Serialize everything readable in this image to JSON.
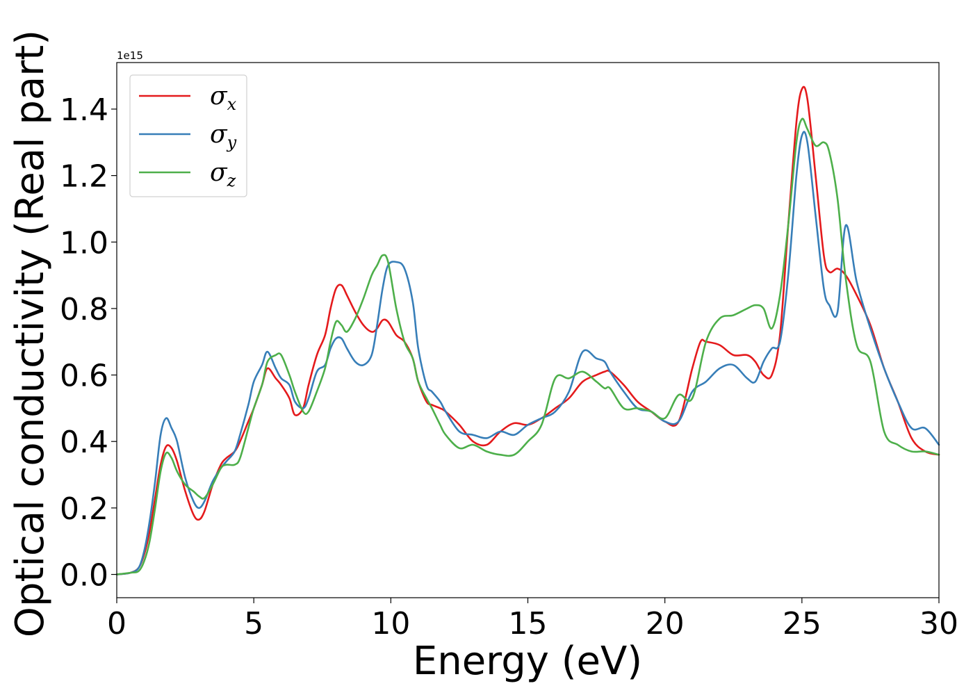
{
  "chart_data": {
    "type": "line",
    "title": "",
    "xlabel": "Energy (eV)",
    "ylabel": "Optical conductivity (Real part)",
    "y_offset_label": "1e15",
    "xlim": [
      0,
      30
    ],
    "ylim": [
      -0.07,
      1.54
    ],
    "xticks": [
      0,
      5,
      10,
      15,
      20,
      25,
      30
    ],
    "xtick_labels": [
      "0",
      "5",
      "10",
      "15",
      "20",
      "25",
      "30"
    ],
    "yticks": [
      0.0,
      0.2,
      0.4,
      0.6,
      0.8,
      1.0,
      1.2,
      1.4
    ],
    "ytick_labels": [
      "0.0",
      "0.2",
      "0.4",
      "0.6",
      "0.8",
      "1.0",
      "1.2",
      "1.4"
    ],
    "grid": false,
    "legend_position": "upper-left",
    "series": [
      {
        "name": "σx",
        "symbol": "σ",
        "subscript": "x",
        "color": "#e41a1c",
        "x": [
          0,
          0.5,
          0.8,
          1.0,
          1.2,
          1.4,
          1.6,
          1.8,
          2.0,
          2.2,
          2.5,
          2.8,
          3.0,
          3.2,
          3.5,
          3.8,
          4.0,
          4.3,
          4.5,
          4.8,
          5.0,
          5.3,
          5.5,
          5.8,
          6.0,
          6.3,
          6.5,
          6.8,
          7.0,
          7.3,
          7.6,
          7.8,
          8.0,
          8.2,
          8.4,
          8.7,
          9.0,
          9.3,
          9.5,
          9.7,
          9.9,
          10.2,
          10.5,
          10.8,
          11.0,
          11.3,
          11.5,
          11.8,
          12.0,
          12.5,
          13.0,
          13.5,
          14.0,
          14.5,
          15.0,
          15.5,
          16.0,
          16.5,
          17.0,
          17.5,
          17.8,
          18.0,
          18.5,
          19.0,
          19.5,
          20.0,
          20.5,
          21.0,
          21.3,
          21.5,
          22.0,
          22.5,
          23.0,
          23.3,
          23.6,
          23.9,
          24.2,
          24.5,
          24.8,
          25.0,
          25.2,
          25.5,
          25.8,
          26.0,
          26.3,
          26.6,
          27.0,
          27.5,
          28.0,
          28.5,
          29.0,
          29.5,
          30.0
        ],
        "y": [
          0.0,
          0.005,
          0.02,
          0.06,
          0.13,
          0.23,
          0.33,
          0.385,
          0.38,
          0.34,
          0.25,
          0.18,
          0.165,
          0.19,
          0.27,
          0.33,
          0.35,
          0.37,
          0.4,
          0.46,
          0.5,
          0.57,
          0.62,
          0.59,
          0.57,
          0.53,
          0.48,
          0.5,
          0.57,
          0.66,
          0.72,
          0.8,
          0.86,
          0.87,
          0.84,
          0.79,
          0.75,
          0.73,
          0.74,
          0.765,
          0.76,
          0.72,
          0.7,
          0.65,
          0.58,
          0.52,
          0.51,
          0.5,
          0.49,
          0.45,
          0.4,
          0.39,
          0.43,
          0.455,
          0.45,
          0.47,
          0.5,
          0.53,
          0.58,
          0.6,
          0.61,
          0.61,
          0.57,
          0.52,
          0.49,
          0.46,
          0.46,
          0.62,
          0.7,
          0.7,
          0.69,
          0.66,
          0.66,
          0.64,
          0.6,
          0.6,
          0.72,
          1.05,
          1.36,
          1.46,
          1.43,
          1.2,
          0.96,
          0.91,
          0.92,
          0.9,
          0.84,
          0.75,
          0.62,
          0.52,
          0.41,
          0.37,
          0.36
        ]
      },
      {
        "name": "σy",
        "symbol": "σ",
        "subscript": "y",
        "color": "#377eb8",
        "x": [
          0,
          0.5,
          0.8,
          1.0,
          1.2,
          1.4,
          1.6,
          1.8,
          2.0,
          2.2,
          2.5,
          2.8,
          3.0,
          3.2,
          3.5,
          3.8,
          4.0,
          4.3,
          4.5,
          4.8,
          5.0,
          5.3,
          5.5,
          5.8,
          6.0,
          6.3,
          6.5,
          6.8,
          7.0,
          7.3,
          7.6,
          7.8,
          8.0,
          8.2,
          8.4,
          8.7,
          9.0,
          9.3,
          9.5,
          9.7,
          9.9,
          10.2,
          10.5,
          10.8,
          11.0,
          11.3,
          11.5,
          11.8,
          12.0,
          12.5,
          13.0,
          13.5,
          14.0,
          14.5,
          15.0,
          15.5,
          16.0,
          16.5,
          17.0,
          17.5,
          17.8,
          18.0,
          18.5,
          19.0,
          19.5,
          20.0,
          20.5,
          21.0,
          21.5,
          22.0,
          22.5,
          23.0,
          23.3,
          23.6,
          23.9,
          24.2,
          24.5,
          24.8,
          25.0,
          25.2,
          25.5,
          25.8,
          26.0,
          26.3,
          26.6,
          27.0,
          27.5,
          28.0,
          28.5,
          29.0,
          29.5,
          30.0
        ],
        "y": [
          0.0,
          0.005,
          0.02,
          0.07,
          0.16,
          0.28,
          0.42,
          0.47,
          0.44,
          0.4,
          0.29,
          0.22,
          0.2,
          0.22,
          0.28,
          0.32,
          0.34,
          0.37,
          0.42,
          0.51,
          0.58,
          0.63,
          0.67,
          0.62,
          0.59,
          0.57,
          0.52,
          0.5,
          0.53,
          0.61,
          0.63,
          0.68,
          0.71,
          0.71,
          0.68,
          0.64,
          0.63,
          0.66,
          0.75,
          0.86,
          0.93,
          0.94,
          0.92,
          0.82,
          0.68,
          0.57,
          0.55,
          0.52,
          0.49,
          0.43,
          0.42,
          0.41,
          0.43,
          0.42,
          0.45,
          0.47,
          0.49,
          0.55,
          0.67,
          0.65,
          0.64,
          0.61,
          0.55,
          0.5,
          0.49,
          0.46,
          0.46,
          0.55,
          0.58,
          0.62,
          0.63,
          0.59,
          0.58,
          0.64,
          0.68,
          0.7,
          0.9,
          1.2,
          1.32,
          1.3,
          1.08,
          0.86,
          0.81,
          0.79,
          1.05,
          0.88,
          0.74,
          0.62,
          0.52,
          0.44,
          0.44,
          0.39
        ]
      },
      {
        "name": "σz",
        "symbol": "σ",
        "subscript": "z",
        "color": "#4daf4a",
        "x": [
          0,
          0.5,
          0.8,
          1.0,
          1.2,
          1.4,
          1.6,
          1.8,
          2.0,
          2.2,
          2.5,
          2.8,
          3.0,
          3.2,
          3.5,
          3.8,
          4.0,
          4.3,
          4.5,
          4.8,
          5.0,
          5.3,
          5.5,
          5.8,
          6.0,
          6.3,
          6.5,
          6.8,
          7.0,
          7.3,
          7.6,
          7.8,
          8.0,
          8.2,
          8.4,
          8.7,
          9.0,
          9.3,
          9.5,
          9.7,
          9.9,
          10.2,
          10.5,
          10.8,
          11.0,
          11.3,
          11.5,
          11.8,
          12.0,
          12.5,
          13.0,
          13.5,
          14.0,
          14.5,
          15.0,
          15.5,
          16.0,
          16.5,
          17.0,
          17.5,
          17.8,
          18.0,
          18.5,
          19.0,
          19.5,
          20.0,
          20.5,
          21.0,
          21.5,
          22.0,
          22.5,
          23.0,
          23.3,
          23.6,
          23.9,
          24.2,
          24.5,
          24.8,
          25.0,
          25.2,
          25.5,
          25.8,
          26.0,
          26.3,
          26.6,
          27.0,
          27.5,
          28.0,
          28.5,
          29.0,
          29.5,
          30.0
        ],
        "y": [
          0.0,
          0.005,
          0.01,
          0.04,
          0.1,
          0.2,
          0.31,
          0.365,
          0.35,
          0.31,
          0.27,
          0.25,
          0.235,
          0.23,
          0.27,
          0.32,
          0.33,
          0.33,
          0.35,
          0.44,
          0.5,
          0.57,
          0.64,
          0.66,
          0.66,
          0.6,
          0.55,
          0.49,
          0.49,
          0.55,
          0.62,
          0.7,
          0.76,
          0.75,
          0.73,
          0.77,
          0.83,
          0.9,
          0.93,
          0.96,
          0.94,
          0.8,
          0.7,
          0.65,
          0.58,
          0.53,
          0.5,
          0.45,
          0.42,
          0.38,
          0.39,
          0.37,
          0.36,
          0.36,
          0.4,
          0.45,
          0.59,
          0.59,
          0.61,
          0.58,
          0.56,
          0.56,
          0.5,
          0.5,
          0.49,
          0.47,
          0.54,
          0.53,
          0.7,
          0.77,
          0.78,
          0.8,
          0.81,
          0.8,
          0.74,
          0.84,
          1.05,
          1.3,
          1.37,
          1.34,
          1.29,
          1.3,
          1.27,
          1.13,
          0.89,
          0.69,
          0.64,
          0.43,
          0.39,
          0.37,
          0.37,
          0.36
        ]
      }
    ]
  }
}
